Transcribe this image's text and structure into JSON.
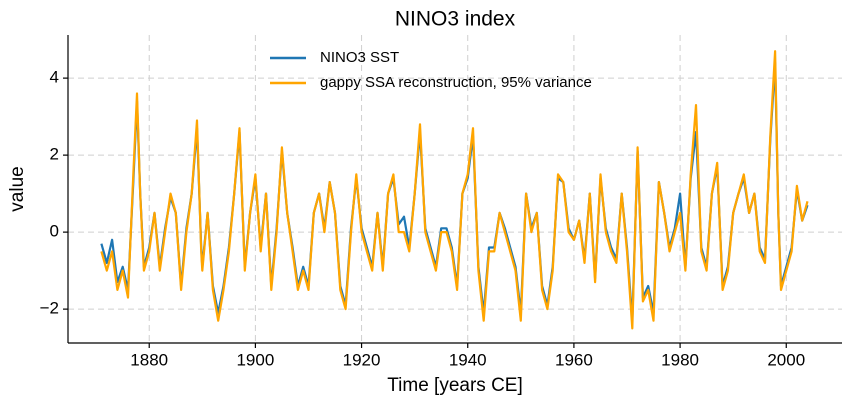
{
  "chart_data": {
    "type": "line",
    "title": "NINO3 index",
    "x_label": "Time [years CE]",
    "y_label": "value",
    "x": [
      1871,
      1872,
      1873,
      1874,
      1875,
      1876,
      1877,
      1877.7,
      1878.3,
      1879,
      1880,
      1881,
      1882,
      1883,
      1884,
      1885,
      1886,
      1887,
      1888,
      1889,
      1889.8,
      1890,
      1891,
      1892,
      1893,
      1894,
      1895,
      1896,
      1897,
      1898,
      1899,
      1900,
      1901,
      1902,
      1903,
      1904,
      1905,
      1906,
      1907,
      1908,
      1909,
      1910,
      1911,
      1912,
      1913,
      1914,
      1915,
      1916,
      1917,
      1918,
      1919,
      1920,
      1921,
      1922,
      1923,
      1924,
      1925,
      1926,
      1927,
      1928,
      1929,
      1930,
      1931,
      1932,
      1933,
      1934,
      1935,
      1936,
      1937,
      1938,
      1939,
      1940,
      1941,
      1942,
      1943,
      1944,
      1945,
      1946,
      1947,
      1948,
      1949,
      1950,
      1951,
      1952,
      1953,
      1954,
      1955,
      1956,
      1957,
      1958,
      1959,
      1960,
      1961,
      1962,
      1963,
      1964,
      1965,
      1966,
      1967,
      1968,
      1969,
      1970,
      1971,
      1972,
      1973,
      1974,
      1975,
      1976,
      1977,
      1978,
      1979,
      1980,
      1981,
      1982,
      1983,
      1984,
      1985,
      1986,
      1987,
      1988,
      1989,
      1990,
      1991,
      1992,
      1993,
      1994,
      1995,
      1996,
      1997,
      1997.9,
      1998.5,
      1999,
      2000,
      2001,
      2002,
      2003,
      2004
    ],
    "series": [
      {
        "name": "NINO3 SST",
        "color": "#1f77b4",
        "values": [
          -0.3,
          -0.8,
          -0.2,
          -1.3,
          -0.9,
          -1.5,
          1.3,
          3.4,
          1.0,
          -0.9,
          -0.4,
          0.5,
          -0.9,
          0.1,
          0.9,
          0.5,
          -1.4,
          0.1,
          1.0,
          2.7,
          -0.4,
          -0.9,
          0.5,
          -1.4,
          -2.1,
          -1.4,
          -0.4,
          1.0,
          2.6,
          -0.9,
          0.5,
          1.4,
          -0.4,
          1.0,
          -1.4,
          0.1,
          2.1,
          0.5,
          -0.4,
          -1.4,
          -0.9,
          -1.4,
          0.5,
          1.0,
          0.1,
          1.3,
          0.5,
          -1.4,
          -1.9,
          0.1,
          1.4,
          0.1,
          -0.4,
          -0.9,
          0.5,
          -0.9,
          1.0,
          1.4,
          0.2,
          0.4,
          -0.4,
          1.0,
          2.6,
          0.1,
          -0.4,
          -0.9,
          0.1,
          0.1,
          -0.4,
          -1.4,
          1.0,
          1.4,
          2.5,
          -0.9,
          -2.1,
          -0.4,
          -0.4,
          0.5,
          0.1,
          -0.4,
          -0.9,
          -2.1,
          1.0,
          0.1,
          0.5,
          -1.4,
          -1.9,
          -0.9,
          1.4,
          1.3,
          0.1,
          -0.2,
          0.3,
          -0.7,
          1.0,
          -1.2,
          1.4,
          0.1,
          -0.4,
          -0.7,
          1.0,
          -0.4,
          -2.3,
          2.1,
          -1.7,
          -1.4,
          -2.1,
          1.3,
          0.5,
          -0.4,
          0.1,
          1.0,
          -0.9,
          1.4,
          2.6,
          -0.4,
          -0.9,
          1.0,
          1.7,
          -1.4,
          -0.9,
          0.5,
          1.0,
          1.4,
          0.5,
          1.0,
          -0.4,
          -0.7,
          2.4,
          4.4,
          0.5,
          -1.4,
          -0.9,
          -0.4,
          1.1,
          0.3,
          0.7
        ]
      },
      {
        "name": "gappy SSA reconstruction, 95% variance",
        "color": "#ffa500",
        "values": [
          -0.5,
          -1.0,
          -0.5,
          -1.5,
          -1.0,
          -1.7,
          1.5,
          3.6,
          1.0,
          -1.0,
          -0.5,
          0.5,
          -1.0,
          0.0,
          1.0,
          0.5,
          -1.5,
          0.0,
          1.0,
          2.9,
          -0.5,
          -1.0,
          0.5,
          -1.5,
          -2.3,
          -1.5,
          -0.5,
          1.0,
          2.7,
          -1.0,
          0.5,
          1.5,
          -0.5,
          1.0,
          -1.5,
          0.0,
          2.2,
          0.5,
          -0.5,
          -1.5,
          -1.0,
          -1.5,
          0.5,
          1.0,
          0.0,
          1.3,
          0.5,
          -1.5,
          -2.0,
          0.0,
          1.5,
          0.0,
          -0.5,
          -1.0,
          0.5,
          -1.0,
          1.0,
          1.5,
          0.0,
          0.0,
          -0.5,
          1.0,
          2.8,
          0.0,
          -0.5,
          -1.0,
          0.0,
          0.0,
          -0.5,
          -1.5,
          1.0,
          1.5,
          2.7,
          -1.0,
          -2.3,
          -0.5,
          -0.5,
          0.5,
          0.0,
          -0.5,
          -1.0,
          -2.3,
          1.0,
          0.0,
          0.5,
          -1.5,
          -2.0,
          -1.0,
          1.5,
          1.3,
          0.0,
          -0.2,
          0.3,
          -0.8,
          1.0,
          -1.3,
          1.5,
          0.0,
          -0.5,
          -0.8,
          1.0,
          -0.5,
          -2.5,
          2.2,
          -1.8,
          -1.5,
          -2.3,
          1.3,
          0.5,
          -0.5,
          0.0,
          0.5,
          -1.0,
          1.5,
          3.3,
          -0.5,
          -1.0,
          1.0,
          1.8,
          -1.5,
          -1.0,
          0.5,
          1.0,
          1.5,
          0.5,
          1.0,
          -0.5,
          -0.8,
          2.5,
          4.7,
          0.5,
          -1.5,
          -1.0,
          -0.5,
          1.2,
          0.3,
          0.8
        ]
      }
    ],
    "xlim": [
      1864.7,
      2010.5
    ],
    "ylim": [
      -2.88,
      5.12
    ],
    "xticks": [
      1880,
      1900,
      1920,
      1940,
      1960,
      1980,
      2000
    ],
    "yticks": [
      {
        "value": -2,
        "label": "−2"
      },
      0,
      2,
      4
    ],
    "grid": true,
    "legend": "upper center"
  }
}
